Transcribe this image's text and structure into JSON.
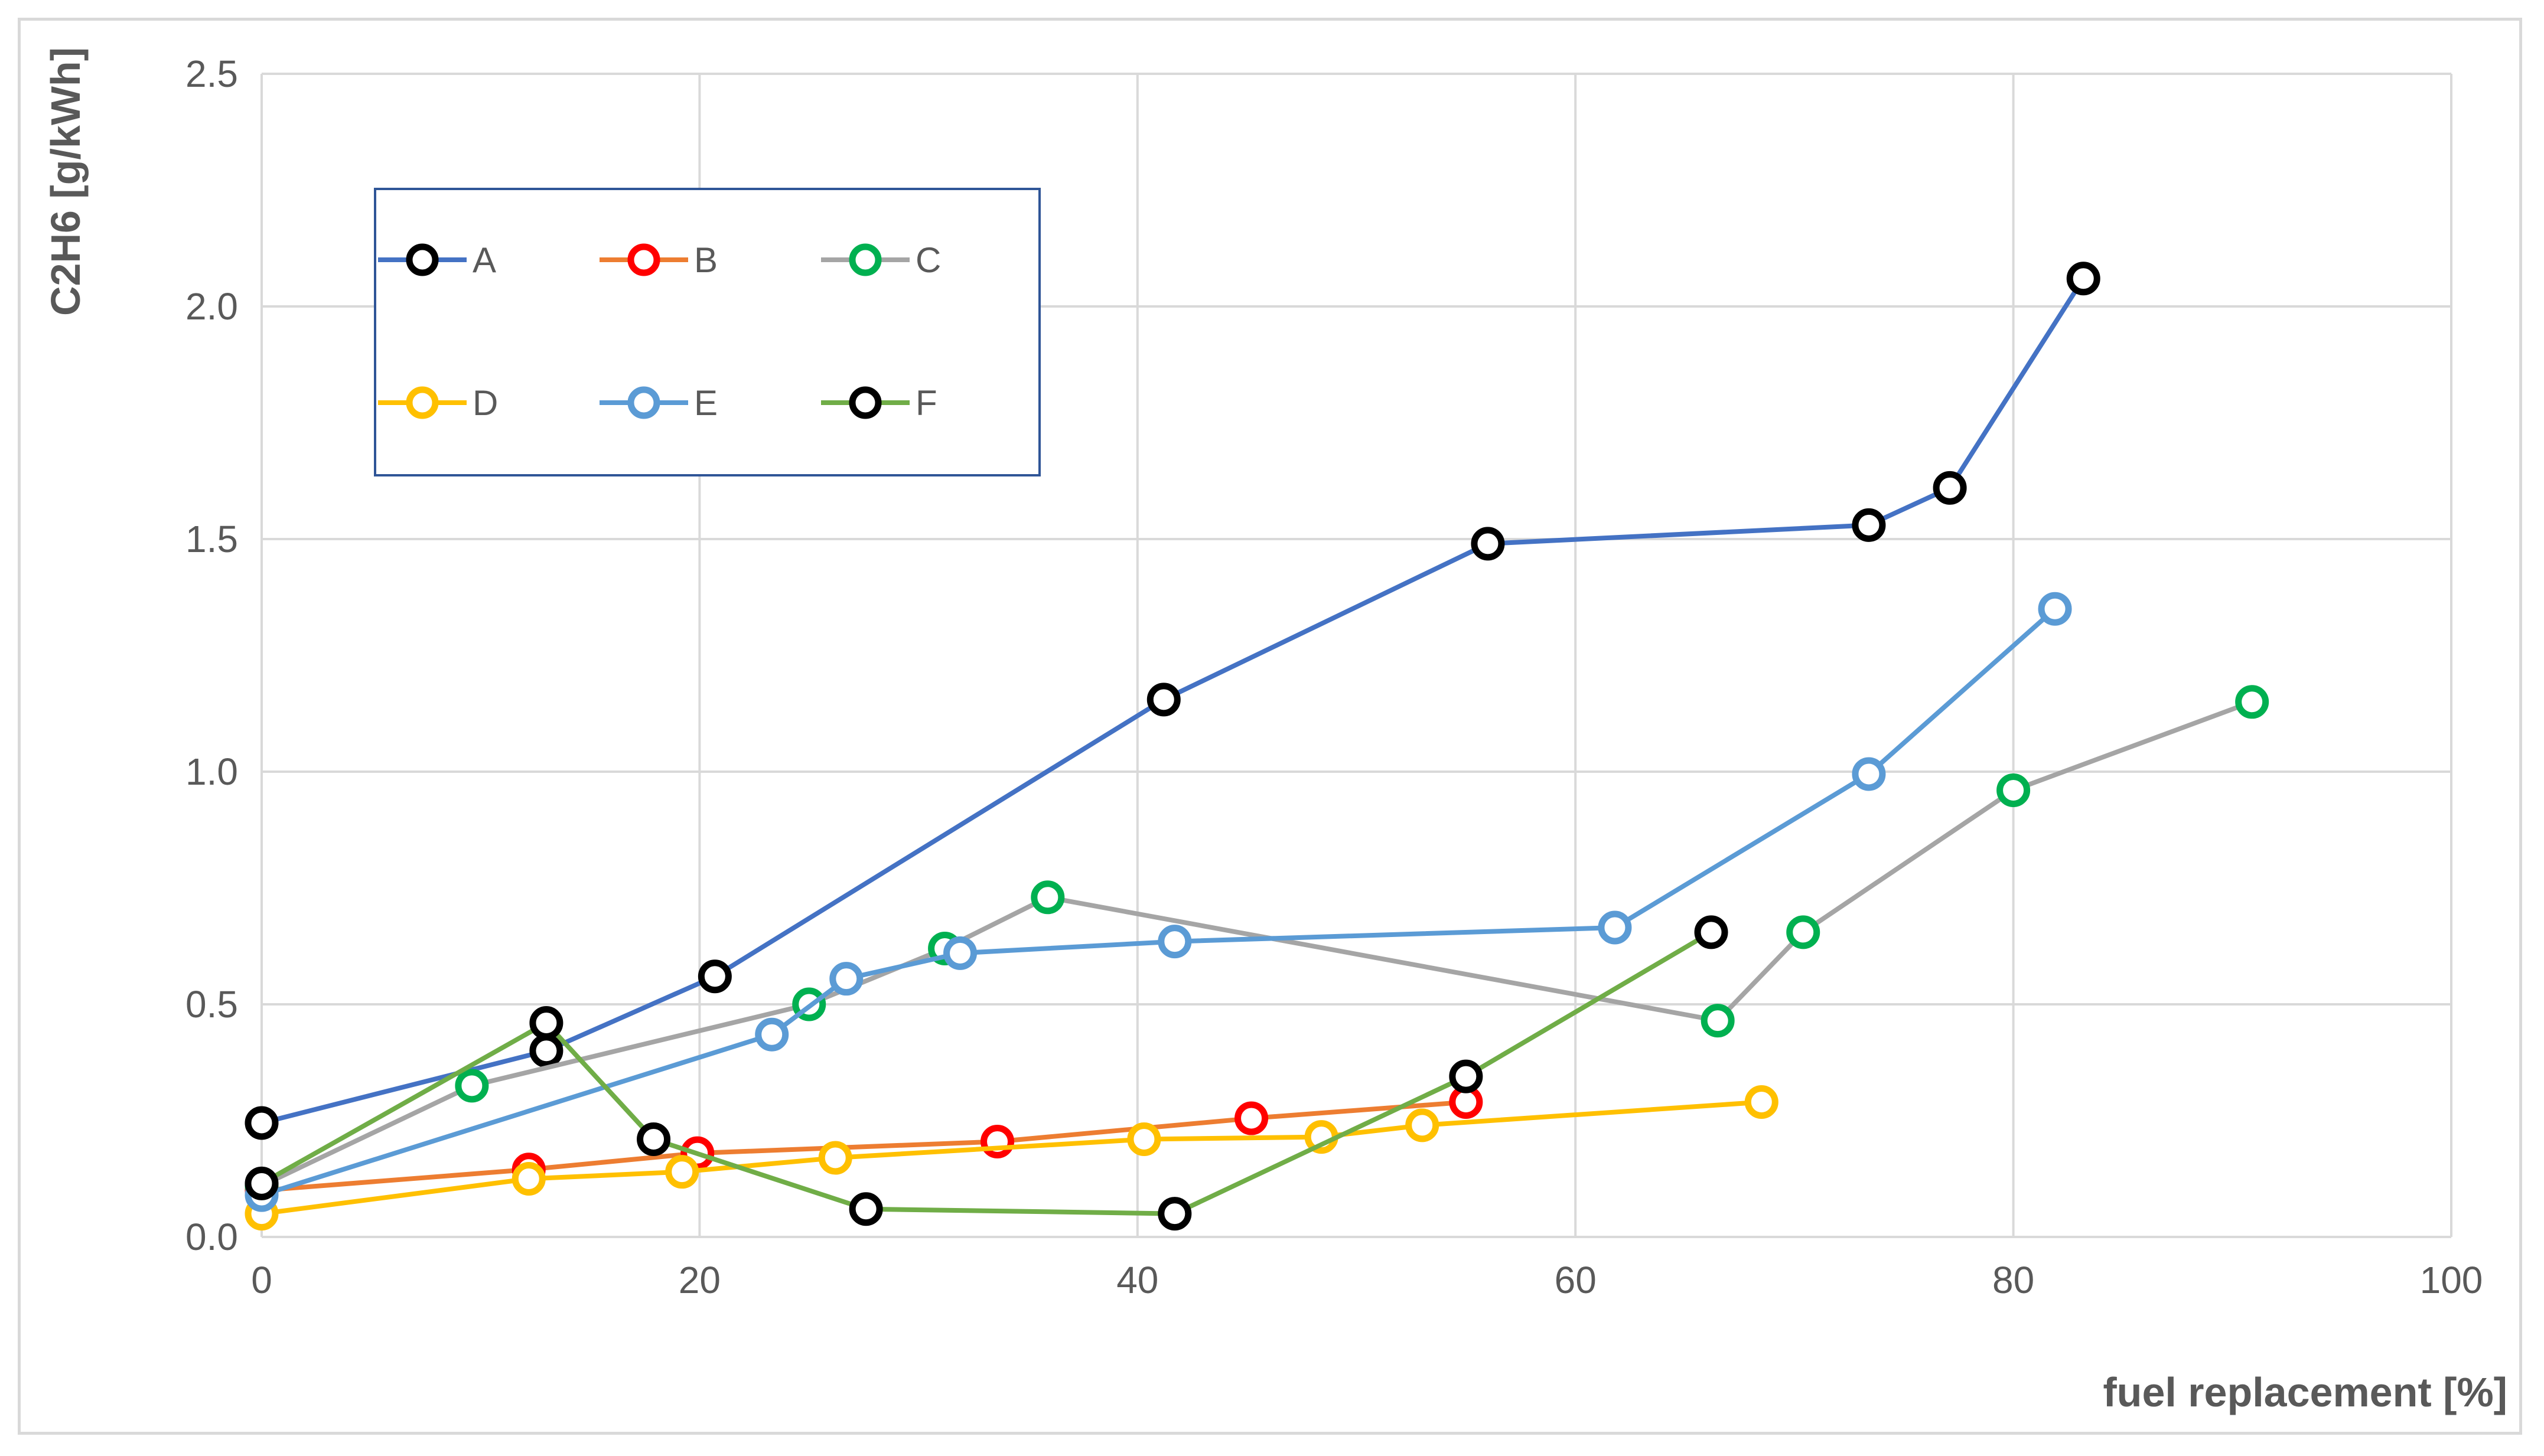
{
  "chart_data": {
    "type": "line",
    "title": "",
    "xlabel": "fuel replacement [%]",
    "ylabel": "C2H6 [g/kWh]",
    "xlim": [
      0,
      100
    ],
    "ylim": [
      0,
      2.5
    ],
    "x_ticks": [
      "0",
      "20",
      "40",
      "60",
      "80",
      "100"
    ],
    "y_ticks": [
      "0.0",
      "0.5",
      "1.0",
      "1.5",
      "2.0",
      "2.5"
    ],
    "grid": true,
    "legend_placement": "top-left",
    "series": [
      {
        "name": "A",
        "line_color": "#4472c4",
        "marker_color": "#000000",
        "points": [
          [
            0,
            0.245
          ],
          [
            13,
            0.4
          ],
          [
            20.7,
            0.56
          ],
          [
            41.2,
            1.155
          ],
          [
            56,
            1.49
          ],
          [
            73.4,
            1.53
          ],
          [
            77.1,
            1.61
          ],
          [
            83.2,
            2.06
          ]
        ]
      },
      {
        "name": "B",
        "line_color": "#ed7d31",
        "marker_color": "#ff0000",
        "points": [
          [
            0,
            0.1
          ],
          [
            12.2,
            0.145
          ],
          [
            19.9,
            0.18
          ],
          [
            33.6,
            0.205
          ],
          [
            45.2,
            0.255
          ],
          [
            55,
            0.29
          ]
        ]
      },
      {
        "name": "C",
        "line_color": "#a5a5a5",
        "marker_color": "#00b050",
        "points": [
          [
            0,
            0.11
          ],
          [
            9.6,
            0.325
          ],
          [
            25,
            0.5
          ],
          [
            31.2,
            0.62
          ],
          [
            35.9,
            0.73
          ],
          [
            66.5,
            0.465
          ],
          [
            70.4,
            0.655
          ],
          [
            80,
            0.96
          ],
          [
            90.9,
            1.15
          ]
        ]
      },
      {
        "name": "D",
        "line_color": "#ffc000",
        "marker_color": "#ffc000",
        "points": [
          [
            0,
            0.05
          ],
          [
            12.2,
            0.125
          ],
          [
            19.2,
            0.14
          ],
          [
            26.2,
            0.17
          ],
          [
            40.3,
            0.21
          ],
          [
            48.4,
            0.215
          ],
          [
            53,
            0.24
          ],
          [
            68.5,
            0.29
          ]
        ]
      },
      {
        "name": "E",
        "line_color": "#5b9bd5",
        "marker_color": "#5b9bd5",
        "points": [
          [
            0,
            0.09
          ],
          [
            23.3,
            0.435
          ],
          [
            26.7,
            0.555
          ],
          [
            31.9,
            0.61
          ],
          [
            41.7,
            0.635
          ],
          [
            61.8,
            0.665
          ],
          [
            73.4,
            0.995
          ],
          [
            81.9,
            1.35
          ]
        ]
      },
      {
        "name": "F",
        "line_color": "#70ad47",
        "marker_color": "#000000",
        "points": [
          [
            0,
            0.115
          ],
          [
            13,
            0.46
          ],
          [
            17.9,
            0.21
          ],
          [
            27.6,
            0.06
          ],
          [
            41.7,
            0.05
          ],
          [
            55,
            0.345
          ],
          [
            66.2,
            0.655
          ]
        ]
      }
    ]
  }
}
